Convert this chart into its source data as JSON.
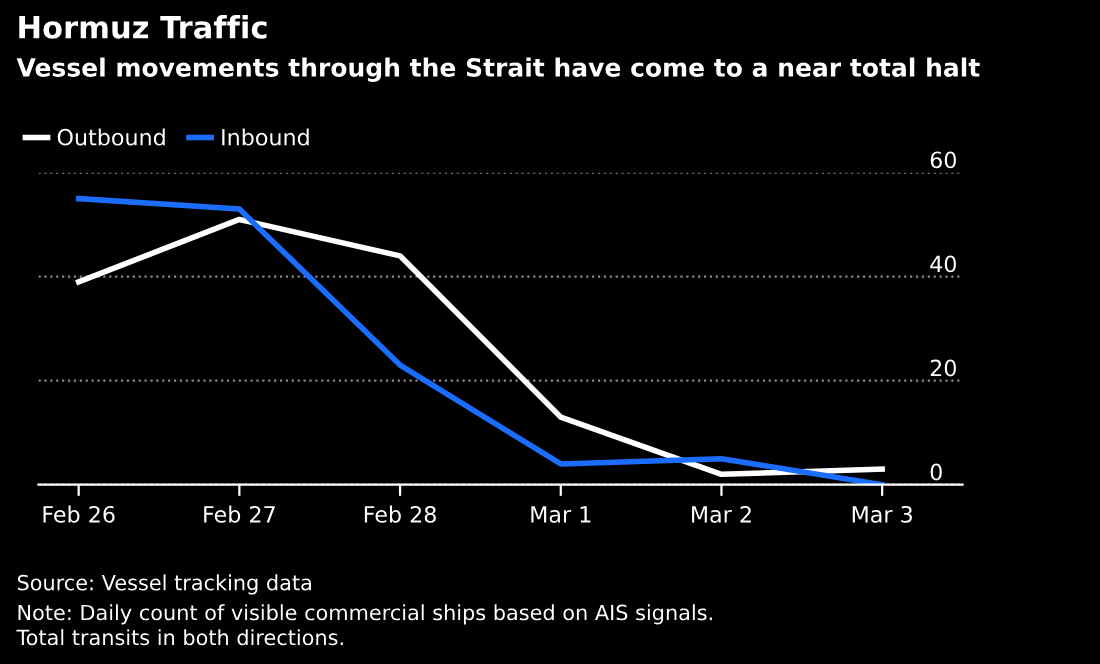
{
  "chart_data": {
    "type": "line",
    "title": "Hormuz Traffic",
    "subtitle": "Vessel movements through the Strait have come to a near total halt",
    "categories": [
      "Feb 26",
      "Feb 27",
      "Feb 28",
      "Mar 1",
      "Mar 2",
      "Mar 3"
    ],
    "series": [
      {
        "name": "Outbound",
        "color": "#ffffff",
        "values": [
          39,
          51,
          44,
          13,
          2,
          3
        ]
      },
      {
        "name": "Inbound",
        "color": "#1a6dff",
        "values": [
          55,
          53,
          23,
          4,
          5,
          0
        ]
      }
    ],
    "ylim": [
      0,
      60
    ],
    "yticks": [
      0,
      20,
      40,
      60
    ],
    "grid": "y",
    "legend": "top left",
    "marker": "none",
    "line_style": "solid",
    "annotations": [
      "Source: Vessel tracking data",
      "Note: Daily count of visible commercial ships based on AIS signals.\nTotal transits in both directions."
    ]
  }
}
